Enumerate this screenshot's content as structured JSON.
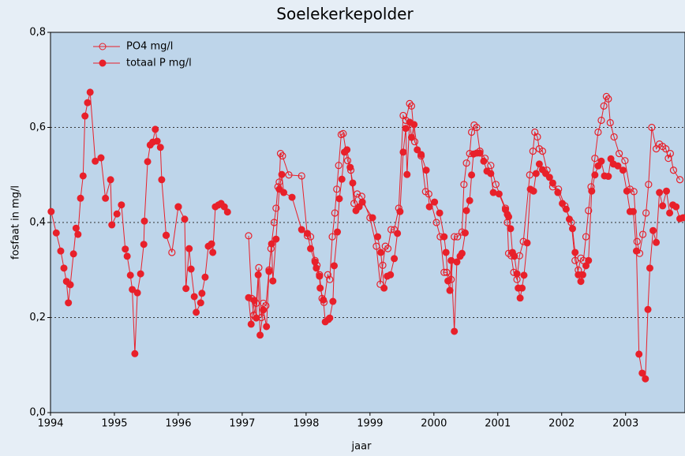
{
  "chart_data": {
    "type": "line",
    "title": "Soelekerkepolder",
    "xlabel": "jaar",
    "ylabel": "fosfaat in mg/l",
    "xlim": [
      1994,
      2003.93
    ],
    "xticks": [
      1994,
      1995,
      1996,
      1997,
      1998,
      1999,
      2000,
      2001,
      2002,
      2003
    ],
    "ylim": [
      0,
      0.8
    ],
    "yticks": [
      {
        "value": 0,
        "label": "0,0"
      },
      {
        "value": 0.2,
        "label": "0,2"
      },
      {
        "value": 0.4,
        "label": "0,4"
      },
      {
        "value": 0.6,
        "label": "0,6"
      },
      {
        "value": 0.8,
        "label": "0,8"
      }
    ],
    "grid": true,
    "legend": "upper left",
    "series": [
      {
        "name": "PO4 mg/l",
        "color": "#e8202a",
        "marker": "open",
        "x": [
          1995.81,
          1995.9,
          1996.0,
          1996.5,
          1997.1,
          1997.15,
          1997.18,
          1997.22,
          1997.26,
          1997.3,
          1997.33,
          1997.37,
          1997.42,
          1997.45,
          1997.5,
          1997.53,
          1997.56,
          1997.58,
          1997.6,
          1997.63,
          1997.73,
          1997.93,
          1998.02,
          1998.07,
          1998.14,
          1998.17,
          1998.21,
          1998.25,
          1998.28,
          1998.34,
          1998.37,
          1998.41,
          1998.45,
          1998.48,
          1998.51,
          1998.55,
          1998.58,
          1998.65,
          1998.7,
          1998.75,
          1998.8,
          1998.87,
          1999.0,
          1999.1,
          1999.16,
          1999.2,
          1999.24,
          1999.28,
          1999.33,
          1999.38,
          1999.45,
          1999.52,
          1999.56,
          1999.62,
          1999.65,
          1999.7,
          1999.8,
          1999.87,
          1999.92,
          2000.04,
          2000.1,
          2000.16,
          2000.2,
          2000.27,
          2000.32,
          2000.37,
          2000.44,
          2000.47,
          2000.51,
          2000.56,
          2000.59,
          2000.63,
          2000.67,
          2000.72,
          2000.8,
          2000.89,
          2000.97,
          2001.12,
          2001.15,
          2001.17,
          2001.21,
          2001.25,
          2001.3,
          2001.34,
          2001.4,
          2001.5,
          2001.55,
          2001.58,
          2001.62,
          2001.65,
          2001.7,
          2001.77,
          2001.86,
          2001.95,
          2002.05,
          2002.15,
          2002.21,
          2002.26,
          2002.3,
          2002.34,
          2002.38,
          2002.42,
          2002.46,
          2002.52,
          2002.57,
          2002.62,
          2002.66,
          2002.7,
          2002.73,
          2002.76,
          2002.82,
          2002.9,
          2002.99,
          2003.07,
          2003.13,
          2003.18,
          2003.22,
          2003.27,
          2003.32,
          2003.36,
          2003.41,
          2003.48,
          2003.53,
          2003.58,
          2003.63,
          2003.67,
          2003.7,
          2003.75,
          2003.85
        ],
        "values": [
          0.373,
          0.337,
          0.433,
          null,
          0.372,
          0.24,
          0.205,
          0.23,
          0.305,
          0.2,
          0.23,
          0.225,
          0.3,
          0.345,
          0.4,
          0.43,
          0.475,
          0.485,
          0.545,
          0.54,
          0.5,
          0.498,
          0.372,
          0.37,
          0.32,
          0.31,
          0.29,
          0.24,
          0.232,
          0.29,
          0.28,
          0.37,
          0.42,
          0.47,
          0.52,
          0.585,
          0.587,
          0.53,
          0.51,
          0.44,
          0.46,
          0.455,
          0.41,
          0.35,
          0.27,
          0.31,
          0.35,
          0.345,
          0.385,
          0.385,
          0.43,
          0.625,
          0.615,
          0.65,
          0.645,
          0.57,
          0.54,
          0.465,
          0.46,
          0.4,
          0.37,
          0.295,
          0.295,
          0.28,
          0.37,
          0.37,
          0.38,
          0.48,
          0.525,
          0.545,
          0.59,
          0.605,
          0.6,
          0.55,
          0.535,
          0.52,
          0.48,
          0.43,
          0.4,
          0.335,
          0.33,
          0.295,
          0.28,
          0.33,
          0.36,
          0.5,
          0.55,
          0.59,
          0.58,
          0.555,
          0.55,
          0.51,
          0.475,
          0.47,
          0.435,
          0.4,
          0.32,
          0.3,
          0.325,
          0.32,
          0.37,
          0.425,
          0.475,
          0.535,
          0.59,
          0.615,
          0.645,
          0.665,
          0.66,
          0.61,
          0.58,
          0.545,
          0.53,
          0.47,
          0.465,
          0.36,
          0.335,
          0.375,
          0.42,
          0.48,
          0.6,
          0.555,
          0.565,
          0.56,
          0.555,
          0.535,
          0.545,
          0.51,
          0.49
        ]
      },
      {
        "name": "totaal P mg/l",
        "color": "#e8202a",
        "marker": "filled",
        "x": [
          1994.01,
          1994.09,
          1994.16,
          1994.21,
          1994.25,
          1994.28,
          1994.31,
          1994.36,
          1994.4,
          1994.43,
          1994.47,
          1994.51,
          1994.54,
          1994.58,
          1994.62,
          1994.7,
          1994.79,
          1994.86,
          1994.94,
          1994.96,
          1995.04,
          1995.11,
          1995.17,
          1995.2,
          1995.25,
          1995.28,
          1995.32,
          1995.36,
          1995.41,
          1995.46,
          1995.47,
          1995.52,
          1995.56,
          1995.6,
          1995.64,
          1995.67,
          1995.72,
          1995.74,
          1995.81,
          1995.9,
          1996.0,
          1996.1,
          1996.12,
          1996.17,
          1996.2,
          1996.25,
          1996.28,
          1996.35,
          1996.37,
          1996.42,
          1996.47,
          1996.52,
          1996.54,
          1996.58,
          1996.63,
          1996.67,
          1996.72,
          1996.77,
          1996.9,
          1997.1,
          1997.14,
          1997.19,
          1997.22,
          1997.25,
          1997.28,
          1997.33,
          1997.38,
          1997.42,
          1997.46,
          1997.48,
          1997.53,
          1997.58,
          1997.62,
          1997.65,
          1997.78,
          1997.93,
          1998.02,
          1998.07,
          1998.14,
          1998.16,
          1998.21,
          1998.22,
          1998.27,
          1998.3,
          1998.35,
          1998.37,
          1998.42,
          1998.44,
          1998.49,
          1998.52,
          1998.56,
          1998.6,
          1998.64,
          1998.69,
          1998.73,
          1998.78,
          1998.83,
          1998.88,
          1999.04,
          1999.12,
          1999.17,
          1999.22,
          1999.27,
          1999.32,
          1999.38,
          1999.43,
          1999.47,
          1999.52,
          1999.56,
          1999.58,
          1999.62,
          1999.65,
          1999.69,
          1999.74,
          1999.8,
          1999.88,
          1999.93,
          2000.01,
          2000.09,
          2000.16,
          2000.19,
          2000.22,
          2000.25,
          2000.27,
          2000.32,
          2000.36,
          2000.41,
          2000.44,
          2000.49,
          2000.51,
          2000.56,
          2000.59,
          2000.62,
          2000.67,
          2000.72,
          2000.78,
          2000.83,
          2000.89,
          2000.93,
          2001.02,
          2001.12,
          2001.15,
          2001.17,
          2001.2,
          2001.23,
          2001.26,
          2001.3,
          2001.32,
          2001.35,
          2001.38,
          2001.41,
          2001.46,
          2001.51,
          2001.56,
          2001.6,
          2001.65,
          2001.7,
          2001.75,
          2001.81,
          2001.86,
          2001.94,
          2002.01,
          2002.07,
          2002.12,
          2002.17,
          2002.21,
          2002.26,
          2002.3,
          2002.33,
          2002.38,
          2002.42,
          2002.47,
          2002.52,
          2002.57,
          2002.62,
          2002.67,
          2002.73,
          2002.77,
          2002.81,
          2002.88,
          2002.96,
          2003.02,
          2003.07,
          2003.12,
          2003.17,
          2003.21,
          2003.26,
          2003.31,
          2003.35,
          2003.38,
          2003.43,
          2003.48,
          2003.53,
          2003.58,
          2003.64,
          2003.69,
          2003.74,
          2003.79,
          2003.85,
          2003.9
        ],
        "values": [
          0.423,
          0.378,
          0.34,
          0.304,
          0.276,
          0.231,
          0.269,
          0.334,
          0.388,
          0.375,
          0.451,
          0.498,
          0.624,
          0.652,
          0.674,
          0.529,
          0.536,
          0.451,
          0.49,
          0.395,
          0.418,
          0.437,
          0.344,
          0.329,
          0.289,
          0.259,
          0.124,
          0.252,
          0.292,
          0.354,
          0.403,
          0.528,
          0.563,
          0.569,
          0.596,
          0.571,
          0.558,
          0.49,
          0.373,
          null,
          0.433,
          0.407,
          0.261,
          0.345,
          0.302,
          0.244,
          0.211,
          0.231,
          0.251,
          0.285,
          0.35,
          0.355,
          0.337,
          0.433,
          0.437,
          0.44,
          0.433,
          0.422,
          null,
          0.242,
          0.186,
          0.236,
          0.199,
          0.29,
          0.163,
          0.216,
          0.181,
          0.297,
          0.355,
          0.277,
          0.365,
          0.47,
          0.501,
          0.463,
          0.453,
          0.385,
          0.377,
          0.345,
          0.317,
          0.304,
          0.287,
          0.262,
          0.237,
          0.191,
          0.196,
          0.199,
          0.234,
          0.309,
          0.38,
          0.45,
          0.491,
          0.548,
          0.553,
          0.516,
          0.483,
          0.425,
          0.433,
          0.443,
          0.41,
          0.37,
          0.337,
          0.262,
          0.287,
          0.29,
          0.324,
          0.377,
          0.423,
          0.548,
          0.598,
          0.501,
          0.611,
          0.579,
          0.606,
          0.553,
          0.543,
          0.51,
          0.433,
          0.443,
          0.42,
          0.37,
          0.337,
          0.277,
          0.257,
          0.32,
          0.171,
          0.317,
          0.329,
          0.335,
          0.378,
          0.425,
          0.446,
          0.5,
          0.544,
          0.546,
          0.546,
          0.529,
          0.508,
          0.503,
          0.463,
          0.46,
          0.427,
          0.417,
          0.412,
          0.387,
          0.337,
          0.329,
          0.292,
          0.262,
          0.241,
          0.262,
          0.289,
          0.357,
          0.47,
          0.466,
          0.503,
          0.523,
          0.511,
          0.503,
          0.495,
          0.483,
          0.463,
          0.44,
          0.428,
          0.407,
          0.387,
          0.337,
          0.29,
          0.276,
          0.29,
          0.309,
          0.32,
          0.466,
          0.5,
          0.519,
          0.529,
          0.498,
          0.497,
          0.534,
          0.523,
          0.519,
          0.51,
          0.466,
          0.423,
          0.423,
          0.34,
          0.123,
          0.083,
          0.071,
          0.217,
          0.304,
          0.383,
          0.358,
          0.463,
          0.435,
          0.466,
          0.42,
          0.437,
          0.433,
          0.408,
          0.41
        ]
      }
    ]
  }
}
